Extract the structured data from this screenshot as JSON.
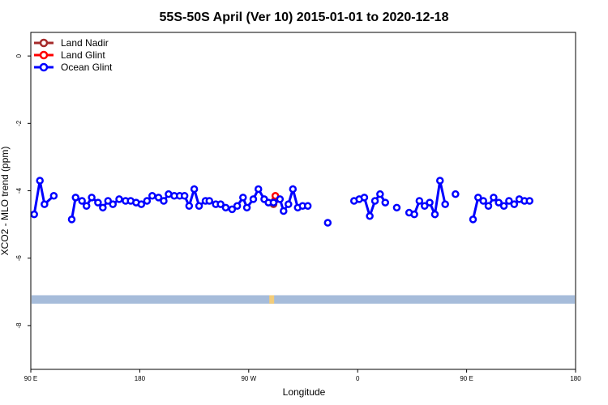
{
  "chart_data": {
    "type": "line",
    "title": "55S-50S April (Ver 10)   2015-01-01 to 2020-12-18",
    "xlabel": "Longitude",
    "ylabel": "XCO2 - MLO trend (ppm)",
    "xlim": [
      90,
      450
    ],
    "ylim": [
      -9.3,
      0.7
    ],
    "x_ticks": [
      {
        "value": 90,
        "label": "90 E"
      },
      {
        "value": 180,
        "label": "180"
      },
      {
        "value": 270,
        "label": "90 W"
      },
      {
        "value": 360,
        "label": "0"
      },
      {
        "value": 450,
        "label": "90 E"
      },
      {
        "value": 540,
        "label": "180"
      }
    ],
    "y_ticks": [
      {
        "value": 0,
        "label": "0"
      },
      {
        "value": -2,
        "label": "-2"
      },
      {
        "value": -4,
        "label": "-4"
      },
      {
        "value": -6,
        "label": "-6"
      },
      {
        "value": -8,
        "label": "-8"
      }
    ],
    "legend": {
      "position": "top-left",
      "entries": [
        {
          "label": "Land Nadir",
          "color": "#a52a2a"
        },
        {
          "label": "Land Glint",
          "color": "#ff0000"
        },
        {
          "label": "Ocean Glint",
          "color": "#0000ff"
        }
      ]
    },
    "series": [
      {
        "name": "Land Nadir",
        "color": "#a52a2a",
        "points": [
          [
            290.5,
            -4.4
          ],
          [
            291.3,
            -4.3
          ]
        ]
      },
      {
        "name": "Land Glint",
        "color": "#ff0000",
        "points": [
          [
            292.0,
            -4.15
          ]
        ]
      },
      {
        "name": "Ocean Glint",
        "color": "#0000ff",
        "segments": [
          [
            [
              92.8,
              -4.7
            ],
            [
              97.5,
              -3.7
            ],
            [
              101.3,
              -4.4
            ],
            [
              109.0,
              -4.15
            ]
          ],
          [
            [
              123.8,
              -4.85
            ],
            [
              127.0,
              -4.2
            ],
            [
              132.3,
              -4.3
            ],
            [
              136.0,
              -4.45
            ],
            [
              140.3,
              -4.2
            ],
            [
              145.5,
              -4.35
            ],
            [
              149.5,
              -4.5
            ],
            [
              153.8,
              -4.3
            ],
            [
              157.8,
              -4.4
            ],
            [
              163.0,
              -4.25
            ],
            [
              168.3,
              -4.3
            ],
            [
              172.5,
              -4.3
            ],
            [
              177.0,
              -4.35
            ],
            [
              181.3,
              -4.4
            ],
            [
              186.0,
              -4.3
            ],
            [
              190.3,
              -4.15
            ],
            [
              195.5,
              -4.2
            ],
            [
              199.8,
              -4.3
            ],
            [
              203.8,
              -4.1
            ],
            [
              208.5,
              -4.15
            ],
            [
              213.0,
              -4.15
            ],
            [
              217.0,
              -4.15
            ],
            [
              220.8,
              -4.45
            ],
            [
              225.0,
              -3.95
            ],
            [
              229.0,
              -4.45
            ],
            [
              234.3,
              -4.3
            ],
            [
              237.5,
              -4.3
            ],
            [
              242.8,
              -4.4
            ],
            [
              246.8,
              -4.4
            ],
            [
              251.0,
              -4.5
            ],
            [
              256.3,
              -4.55
            ],
            [
              260.5,
              -4.45
            ],
            [
              265.3,
              -4.2
            ],
            [
              268.5,
              -4.5
            ],
            [
              273.8,
              -4.25
            ],
            [
              278.0,
              -3.95
            ],
            [
              282.8,
              -4.25
            ],
            [
              286.3,
              -4.35
            ],
            [
              290.5,
              -4.35
            ],
            [
              295.8,
              -4.25
            ],
            [
              298.8,
              -4.6
            ],
            [
              302.8,
              -4.4
            ],
            [
              306.5,
              -3.95
            ],
            [
              310.5,
              -4.5
            ],
            [
              314.5,
              -4.45
            ],
            [
              318.8,
              -4.45
            ]
          ]
        ],
        "isolated": [
          [
            335.3,
            -4.95
          ]
        ],
        "segments_b": [
          [
            [
              357.0,
              -4.3
            ],
            [
              361.3,
              -4.25
            ],
            [
              365.5,
              -4.2
            ],
            [
              370.0,
              -4.75
            ],
            [
              374.3,
              -4.3
            ],
            [
              378.5,
              -4.1
            ],
            [
              382.8,
              -4.35
            ]
          ],
          [
            [
              392.3,
              -4.5
            ]
          ],
          [
            [
              402.5,
              -4.65
            ],
            [
              406.8,
              -4.7
            ],
            [
              411.0,
              -4.3
            ],
            [
              415.3,
              -4.45
            ],
            [
              419.5,
              -4.35
            ],
            [
              423.8,
              -4.7
            ],
            [
              428.0,
              -3.7
            ],
            [
              432.3,
              -4.4
            ]
          ],
          [
            [
              440.8,
              -4.1
            ]
          ],
          [
            [
              455.3,
              -4.85
            ],
            [
              459.5,
              -4.2
            ],
            [
              463.8,
              -4.3
            ],
            [
              468.0,
              -4.45
            ],
            [
              472.3,
              -4.2
            ],
            [
              476.5,
              -4.35
            ],
            [
              480.8,
              -4.45
            ],
            [
              485.0,
              -4.3
            ],
            [
              489.3,
              -4.4
            ],
            [
              493.5,
              -4.25
            ],
            [
              497.8,
              -4.3
            ],
            [
              502.0,
              -4.3
            ]
          ]
        ]
      }
    ],
    "land_band": {
      "y_range": [
        -7.35,
        -7.1
      ],
      "color": "#a6bcda",
      "accent_color": "#f2cc7a"
    }
  }
}
